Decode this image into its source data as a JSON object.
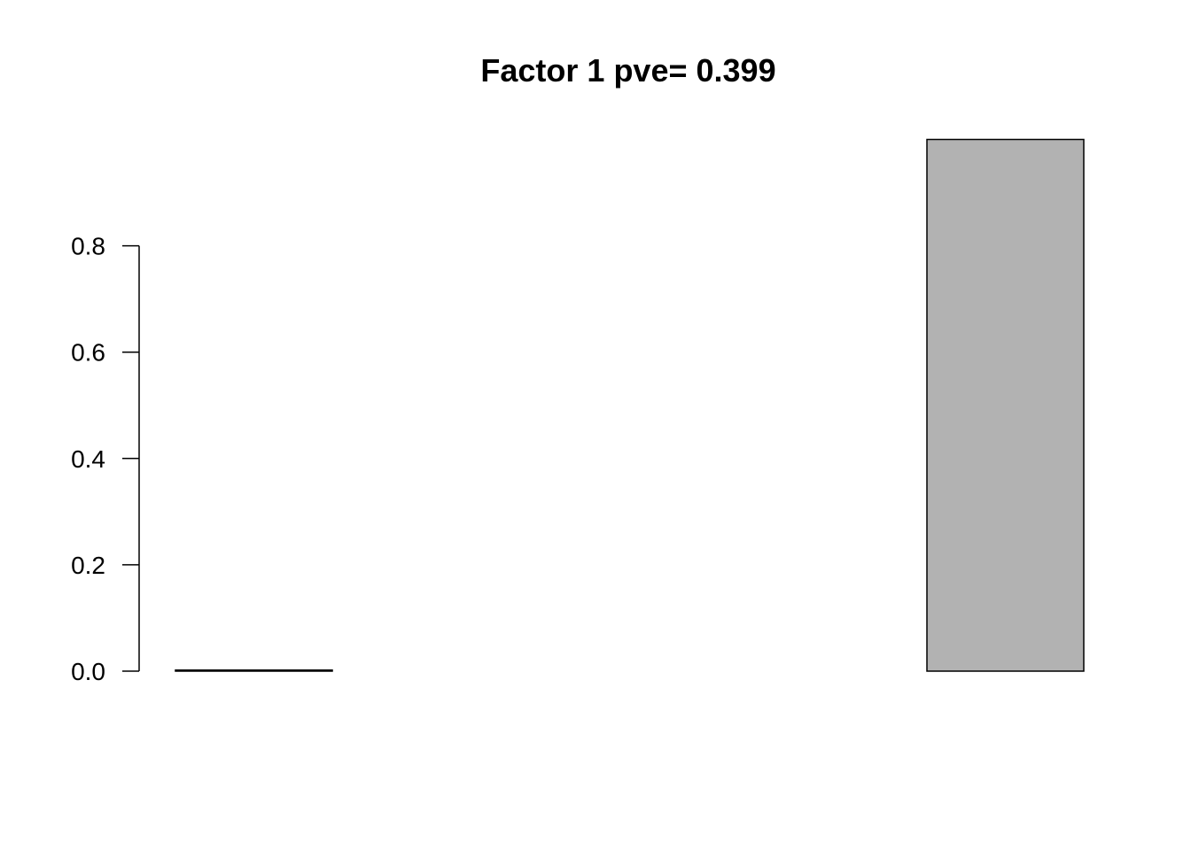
{
  "chart_data": {
    "type": "bar",
    "title": "Factor 1 pve= 0.399",
    "xlabel": "",
    "ylabel": "",
    "categories": [
      "",
      "",
      "",
      "",
      ""
    ],
    "values": [
      0.002,
      0.0,
      0.0,
      0.0,
      1.0
    ],
    "ylim": [
      0,
      1.0
    ],
    "yticks": [
      0.0,
      0.2,
      0.4,
      0.6,
      0.8
    ],
    "ytick_labels": [
      "0.0",
      "0.2",
      "0.4",
      "0.6",
      "0.8"
    ],
    "bar_color": "#b2b2b2",
    "bar_border_color": "#000000",
    "grid": false,
    "legend": "none"
  }
}
